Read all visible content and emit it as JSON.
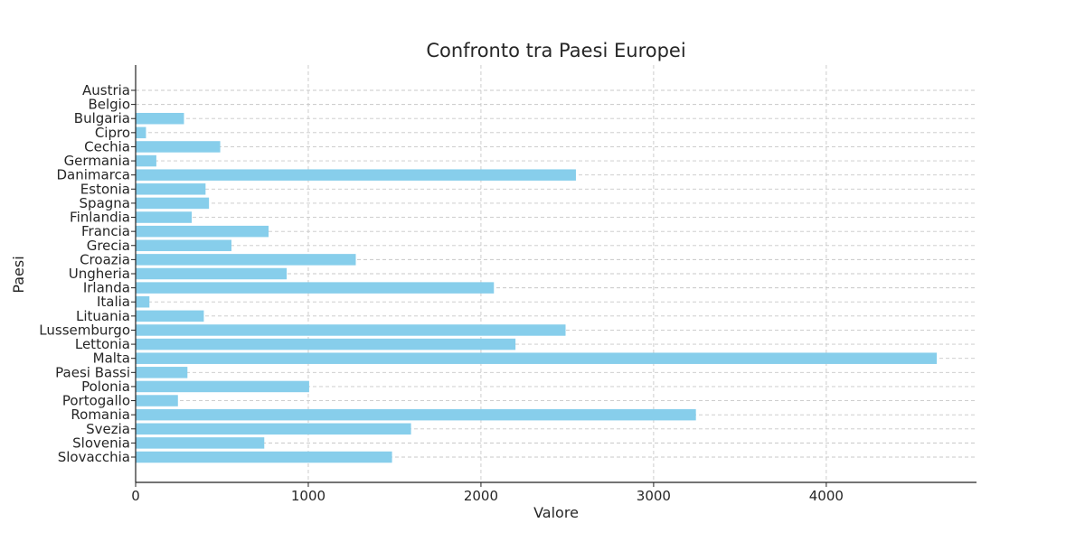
{
  "chart_data": {
    "type": "bar",
    "orientation": "horizontal",
    "title": "Confronto tra Paesi Europei",
    "xlabel": "Valore",
    "ylabel": "Paesi",
    "xlim": [
      0,
      4870
    ],
    "xticks": [
      0,
      1000,
      2000,
      3000,
      4000
    ],
    "grid": true,
    "bar_color": "#87ceeb",
    "categories": [
      "Austria",
      "Belgio",
      "Bulgaria",
      "Cipro",
      "Cechia",
      "Germania",
      "Danimarca",
      "Estonia",
      "Spagna",
      "Finlandia",
      "Francia",
      "Grecia",
      "Croazia",
      "Ungheria",
      "Irlanda",
      "Italia",
      "Lituania",
      "Lussemburgo",
      "Lettonia",
      "Malta",
      "Paesi Bassi",
      "Polonia",
      "Portogallo",
      "Romania",
      "Svezia",
      "Slovenia",
      "Slovacchia"
    ],
    "values": [
      0,
      0,
      280,
      60,
      490,
      120,
      2550,
      405,
      425,
      325,
      770,
      555,
      1275,
      875,
      2075,
      80,
      395,
      2490,
      2200,
      4640,
      300,
      1005,
      245,
      3245,
      1595,
      745,
      1485
    ]
  }
}
